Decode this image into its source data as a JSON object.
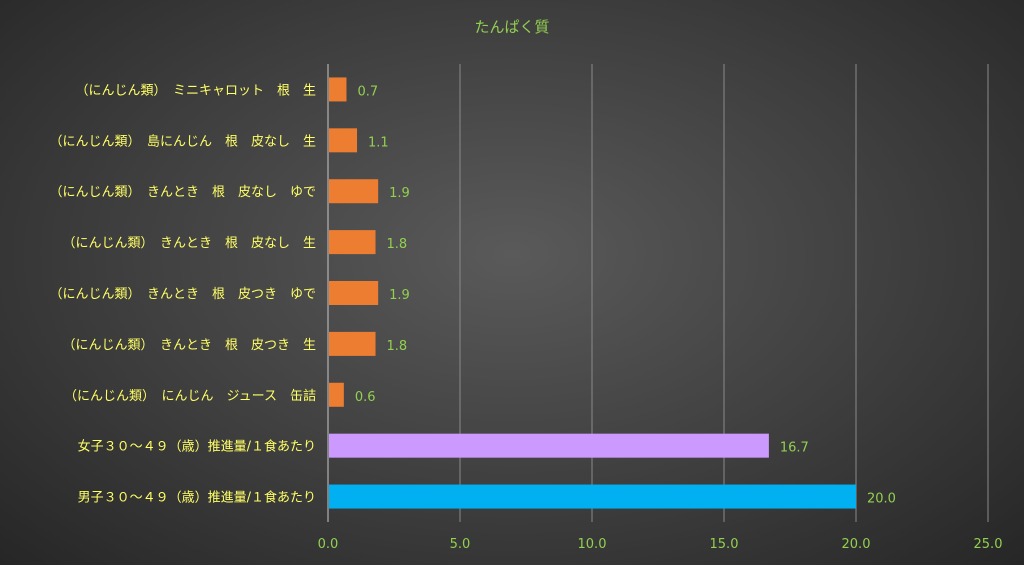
{
  "chart_data": {
    "type": "bar",
    "orientation": "horizontal",
    "title": "たんぱく質",
    "xlabel": "",
    "ylabel": "",
    "xlim": [
      0,
      25
    ],
    "xticks": [
      "0.0",
      "5.0",
      "10.0",
      "15.0",
      "20.0",
      "25.0"
    ],
    "grid": true,
    "legend": "none",
    "categories": [
      "（にんじん類）　ミニキャロット　根　生",
      "（にんじん類）　島にんじん　根　皮なし　生",
      "（にんじん類）　きんとき　根　皮なし　ゆで",
      "（にんじん類）　きんとき　根　皮なし　生",
      "（にんじん類）　きんとき　根　皮つき　ゆで",
      "（にんじん類）　きんとき　根　皮つき　生",
      "（にんじん類）　にんじん　ジュース　缶詰",
      "女子３０～４９（歳）推進量/１食あたり",
      "男子３０～４９（歳）推進量/１食あたり"
    ],
    "values": [
      0.7,
      1.1,
      1.9,
      1.8,
      1.9,
      1.8,
      0.6,
      16.7,
      20.0
    ],
    "value_labels": [
      "0.7",
      "1.1",
      "1.9",
      "1.8",
      "1.9",
      "1.8",
      "0.6",
      "16.7",
      "20.0"
    ],
    "colors": [
      "#ED7D31",
      "#ED7D31",
      "#ED7D31",
      "#ED7D31",
      "#ED7D31",
      "#ED7D31",
      "#ED7D31",
      "#CC99FF",
      "#00B0F0"
    ]
  },
  "style": {
    "title_color": "#92D050",
    "category_label_color": "#FFFF66",
    "value_label_color": "#92D050",
    "tick_label_color": "#92D050",
    "grid_color": "#8a8a8a",
    "axis_color": "#c8c8c8"
  }
}
